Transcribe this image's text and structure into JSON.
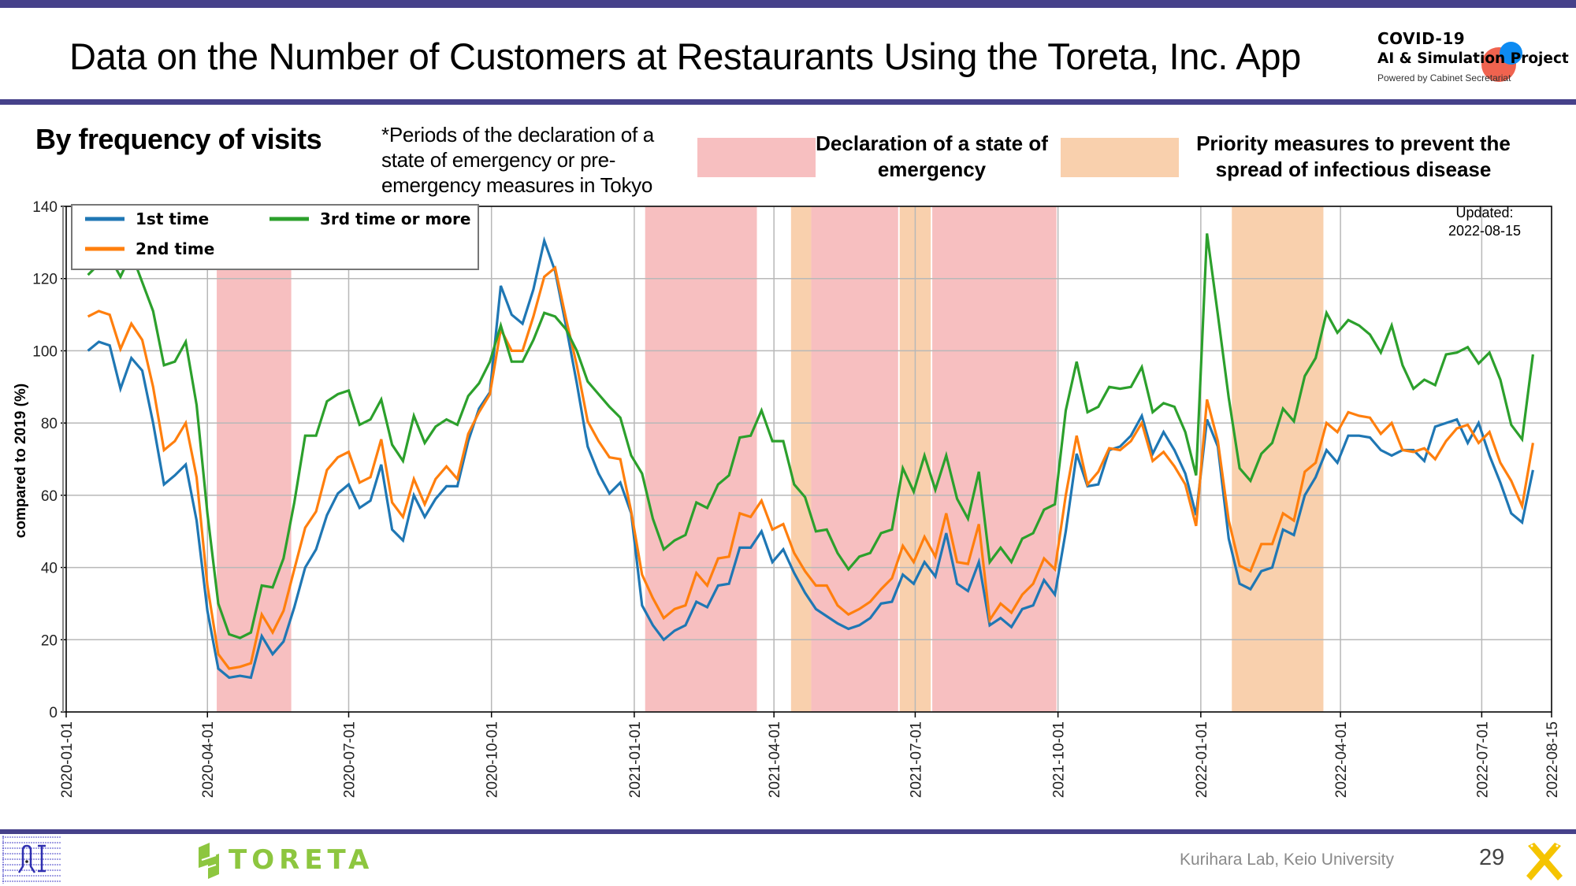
{
  "header": {
    "title": "Data on the Number of Customers at Restaurants Using the Toreta, Inc. App",
    "brand_line1": "COVID-19",
    "brand_line2": "AI & Simulation Project",
    "brand_line3": "Powered by Cabinet Secretariat"
  },
  "section_title": "By frequency of visits",
  "note": "*Periods of the declaration of a state of emergency or pre-emergency measures in Tokyo",
  "shading_legend": {
    "emergency": "Declaration of a state of emergency",
    "priority": "Priority measures to prevent the spread of infectious disease"
  },
  "colors": {
    "frame": "#46418a",
    "first": "#1f77b4",
    "second": "#ff7f0e",
    "third": "#2ca02c",
    "emergency": "#f7bfc0",
    "priority": "#f9d0ad"
  },
  "footer": {
    "brand": "TORETA",
    "lab": "Kurihara Lab, Keio University",
    "page": "29"
  },
  "chart_data": {
    "type": "line",
    "title": "",
    "xlabel": "",
    "ylabel": "compared to 2019 (%)",
    "ylim": [
      0,
      140
    ],
    "yticks": [
      0,
      20,
      40,
      60,
      80,
      100,
      120,
      140
    ],
    "xlim": [
      "2020-01-01",
      "2022-08-15"
    ],
    "xticks": [
      "2020-01-01",
      "2020-04-01",
      "2020-07-01",
      "2020-10-01",
      "2021-01-01",
      "2021-04-01",
      "2021-07-01",
      "2021-10-01",
      "2022-01-01",
      "2022-04-01",
      "2022-07-01",
      "2022-08-15"
    ],
    "grid": true,
    "legend_position": "top-left",
    "annotation": "Updated:\n2022-08-15",
    "x_start": "2020-01-15",
    "x_step_days": 7,
    "series": [
      {
        "name": "1st time",
        "color": "#1f77b4",
        "values": [
          100,
          102.5,
          101.5,
          89.5,
          98,
          94.5,
          80,
          63,
          65.5,
          68.5,
          53,
          28,
          12,
          9.5,
          10,
          9.5,
          21,
          16,
          19.5,
          29,
          40,
          45,
          54.5,
          60.5,
          63,
          56.5,
          58.5,
          68.5,
          50.5,
          47.5,
          60,
          54,
          59,
          62.5,
          62.5,
          75,
          84,
          88.5,
          118,
          110,
          107.5,
          117,
          130.5,
          122,
          107,
          91,
          73.5,
          66,
          60.5,
          63.5,
          55,
          29.5,
          24,
          20,
          22.5,
          24,
          30.5,
          29,
          35,
          35.5,
          45.5,
          45.5,
          50,
          41.5,
          45,
          38.5,
          33,
          28.5,
          26.5,
          24.5,
          23,
          24,
          26,
          30,
          30.5,
          38,
          35.5,
          41.5,
          37.5,
          49.5,
          35.5,
          33.5,
          41.5,
          24,
          26,
          23.5,
          28.5,
          29.5,
          36.5,
          32.5,
          50,
          71.5,
          62.5,
          63,
          72.5,
          73.5,
          76.5,
          82,
          71.5,
          77.5,
          72.5,
          66,
          54.5,
          81,
          73.5,
          48,
          35.5,
          34,
          39,
          40,
          50.5,
          49,
          60,
          65,
          72.5,
          69,
          76.5,
          76.5,
          76,
          72.5,
          71,
          72.5,
          72.5,
          69.5,
          79,
          80,
          81,
          74.5,
          80,
          71,
          63.5,
          55,
          52.5,
          67
        ]
      },
      {
        "name": "2nd time",
        "color": "#ff7f0e",
        "values": [
          109.5,
          111,
          110,
          100.5,
          107.5,
          103,
          90,
          72.5,
          75,
          80,
          65,
          35,
          16,
          12,
          12.5,
          13.5,
          27,
          22,
          28,
          39.5,
          51,
          55.5,
          67,
          70.5,
          72,
          63.5,
          65,
          75.5,
          58,
          54,
          64.5,
          57.5,
          64.5,
          68,
          64.5,
          77,
          83,
          88,
          106,
          100,
          100,
          109.5,
          120.5,
          123,
          109,
          96,
          80.5,
          75,
          70.5,
          70,
          55.5,
          38,
          31.5,
          26,
          28.5,
          29.5,
          38.5,
          35,
          42.5,
          43,
          55,
          54,
          58.5,
          50.5,
          52,
          44,
          39,
          35,
          35,
          29.5,
          27,
          28.5,
          30.5,
          34,
          37,
          46,
          41.5,
          48.5,
          43,
          55,
          41.5,
          41,
          52,
          25.5,
          30,
          27.5,
          32.5,
          35.5,
          42.5,
          39.5,
          60,
          76.5,
          63,
          66.5,
          73,
          72.5,
          75,
          80,
          69.5,
          72,
          68,
          63,
          51.5,
          86.5,
          75,
          53,
          40.5,
          39,
          46.5,
          46.5,
          55,
          53,
          66.5,
          69,
          80,
          77.5,
          83,
          82,
          81.5,
          77,
          80,
          72.5,
          72,
          73,
          70,
          75,
          78.5,
          79.5,
          74.5,
          77.5,
          69,
          64,
          57,
          74.5
        ]
      },
      {
        "name": "3rd time or more",
        "color": "#2ca02c",
        "values": [
          121,
          124,
          126,
          120.5,
          127,
          119,
          111,
          96,
          97,
          102.5,
          85,
          55,
          30,
          21.5,
          20.5,
          22,
          35,
          34.5,
          42.5,
          58,
          76.5,
          76.5,
          86,
          88,
          89,
          79.5,
          81,
          86.5,
          74,
          69.5,
          82,
          74.5,
          79,
          81,
          79.5,
          87.5,
          91,
          97,
          107,
          97,
          97,
          103,
          110.5,
          109.5,
          106,
          100,
          91.5,
          88,
          84.5,
          81.5,
          71,
          66,
          53.5,
          45,
          47.5,
          49,
          58,
          56.5,
          63,
          65.5,
          76,
          76.5,
          83.5,
          75,
          75,
          63,
          59.5,
          50,
          50.5,
          44,
          39.5,
          43,
          44,
          49.5,
          50.5,
          67.5,
          61,
          71,
          61.5,
          71,
          59,
          53.5,
          66.5,
          41.5,
          45.5,
          41.5,
          48,
          49.5,
          56,
          57.5,
          83.5,
          97,
          83,
          84.5,
          90,
          89.5,
          90,
          95.5,
          83,
          85.5,
          84.5,
          77.5,
          65.5,
          132.5,
          110,
          87,
          67.5,
          64,
          71.5,
          74.5,
          84,
          80.5,
          93,
          98,
          110.5,
          105,
          108.5,
          107,
          104.5,
          99.5,
          107,
          96,
          89.5,
          92,
          90.5,
          99,
          99.5,
          101,
          96.5,
          99.5,
          92,
          79.5,
          75.5,
          99
        ]
      }
    ],
    "shaded_periods": [
      {
        "type": "emergency",
        "start": "2020-04-07",
        "end": "2020-05-25"
      },
      {
        "type": "emergency",
        "start": "2021-01-08",
        "end": "2021-03-21"
      },
      {
        "type": "priority",
        "start": "2021-04-12",
        "end": "2021-04-25"
      },
      {
        "type": "emergency",
        "start": "2021-04-25",
        "end": "2021-06-20"
      },
      {
        "type": "priority",
        "start": "2021-06-21",
        "end": "2021-07-11"
      },
      {
        "type": "emergency",
        "start": "2021-07-12",
        "end": "2021-09-30"
      },
      {
        "type": "priority",
        "start": "2022-01-21",
        "end": "2022-03-21"
      }
    ]
  }
}
